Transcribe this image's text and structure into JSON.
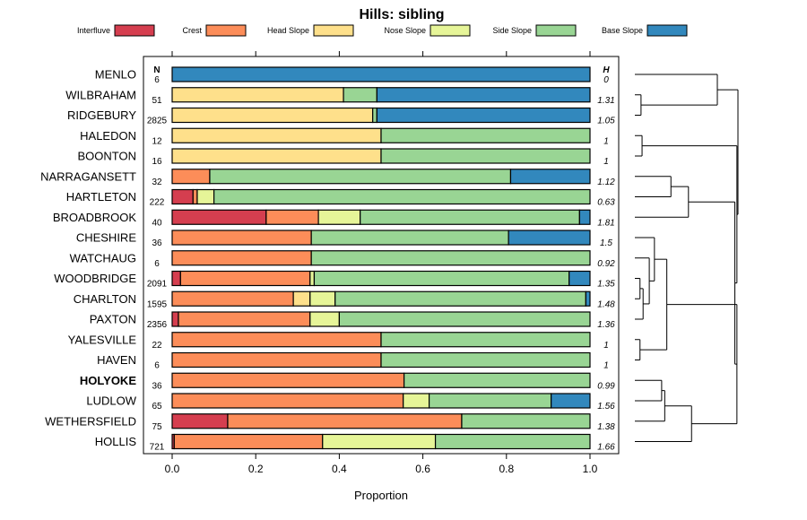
{
  "chart_data": {
    "type": "bar",
    "orientation": "horizontal",
    "stacked": true,
    "title": "Hills: sibling",
    "xlabel": "Proportion",
    "ylabel": "",
    "xlim": [
      0,
      1
    ],
    "x_ticks": [
      "0.0",
      "0.2",
      "0.4",
      "0.6",
      "0.8",
      "1.0"
    ],
    "x_tick_values": [
      0,
      0.2,
      0.4,
      0.6,
      0.8,
      1.0
    ],
    "grid": false,
    "legend_position": "top",
    "n_header": "N",
    "h_header": "H",
    "legend": [
      {
        "name": "Interfluve",
        "color": "#d53e4f"
      },
      {
        "name": "Crest",
        "color": "#fc8d59"
      },
      {
        "name": "Head Slope",
        "color": "#fee08b"
      },
      {
        "name": "Nose Slope",
        "color": "#e6f598"
      },
      {
        "name": "Side Slope",
        "color": "#99d594"
      },
      {
        "name": "Base Slope",
        "color": "#3288bd"
      }
    ],
    "series_names": [
      "Interfluve",
      "Crest",
      "Head Slope",
      "Nose Slope",
      "Side Slope",
      "Base Slope"
    ],
    "categories": [
      "MENLO",
      "WILBRAHAM",
      "RIDGEBURY",
      "HALEDON",
      "BOONTON",
      "NARRAGANSETT",
      "HARTLETON",
      "BROADBROOK",
      "CHESHIRE",
      "WATCHAUG",
      "WOODBRIDGE",
      "CHARLTON",
      "PAXTON",
      "YALESVILLE",
      "HAVEN",
      "HOLYOKE",
      "LUDLOW",
      "WETHERSFIELD",
      "HOLLIS"
    ],
    "bold_category": "HOLYOKE",
    "N": [
      "6",
      "51",
      "2825",
      "12",
      "16",
      "32",
      "222",
      "40",
      "36",
      "6",
      "2091",
      "1595",
      "2356",
      "22",
      "6",
      "36",
      "65",
      "75",
      "721"
    ],
    "H": [
      "0",
      "1.31",
      "1.05",
      "1",
      "1",
      "1.12",
      "0.63",
      "1.81",
      "1.5",
      "0.92",
      "1.35",
      "1.48",
      "1.36",
      "1",
      "1",
      "0.99",
      "1.56",
      "1.38",
      "1.66"
    ],
    "values": [
      [
        0,
        0,
        0,
        0,
        0,
        1.0
      ],
      [
        0,
        0,
        0.41,
        0,
        0.08,
        0.51
      ],
      [
        0,
        0,
        0.48,
        0,
        0.01,
        0.51
      ],
      [
        0,
        0,
        0.5,
        0,
        0.5,
        0
      ],
      [
        0,
        0,
        0.5,
        0,
        0.5,
        0
      ],
      [
        0,
        0.09,
        0,
        0,
        0.72,
        0.19
      ],
      [
        0.05,
        0.01,
        0,
        0.04,
        0.9,
        0
      ],
      [
        0.225,
        0.125,
        0,
        0.1,
        0.525,
        0.025
      ],
      [
        0,
        0.333,
        0,
        0,
        0.472,
        0.195
      ],
      [
        0,
        0.333,
        0,
        0,
        0.667,
        0
      ],
      [
        0.02,
        0.31,
        0,
        0.01,
        0.61,
        0.05
      ],
      [
        0,
        0.29,
        0.04,
        0.06,
        0.6,
        0.01
      ],
      [
        0.015,
        0.315,
        0,
        0.07,
        0.6,
        0
      ],
      [
        0,
        0.5,
        0,
        0,
        0.5,
        0
      ],
      [
        0,
        0.5,
        0,
        0,
        0.5,
        0
      ],
      [
        0,
        0.555,
        0,
        0,
        0.445,
        0
      ],
      [
        0,
        0.553,
        0,
        0.062,
        0.292,
        0.093
      ],
      [
        0.133,
        0.56,
        0,
        0,
        0.307,
        0
      ],
      [
        0.005,
        0.355,
        0,
        0.27,
        0.37,
        0
      ]
    ],
    "dendrogram": {
      "type": "hierarchical-clustering",
      "heights": "relative, 0-1 scale",
      "merges": [
        {
          "a": "WILBRAHAM",
          "b": "RIDGEBURY",
          "height": 0.06
        },
        {
          "a": "HALEDON",
          "b": "BOONTON",
          "height": 0.07
        },
        {
          "a": "YALESVILLE",
          "b": "HAVEN",
          "height": 0.05
        },
        {
          "a": "WOODBRIDGE",
          "b": "CHARLTON",
          "height": 0.05
        },
        {
          "a": "WOODBRIDGE+CHARLTON",
          "b": "PAXTON",
          "height": 0.08
        },
        {
          "a": "WOODBRIDGE+CHARLTON+PAXTON",
          "b": "WATCHAUG",
          "height": 0.14
        },
        {
          "a": "CHESHIRE",
          "b": "WOODBRIDGE+CHARLTON+PAXTON+WATCHAUG",
          "height": 0.19
        },
        {
          "a": "CHESHIRE+...",
          "b": "YALESVILLE+HAVEN",
          "height": 0.31
        },
        {
          "a": "HOLYOKE",
          "b": "LUDLOW",
          "height": 0.26
        },
        {
          "a": "HOLYOKE+LUDLOW",
          "b": "WETHERSFIELD",
          "height": 0.29
        },
        {
          "a": "HOLYOKE+LUDLOW+WETHERSFIELD",
          "b": "HOLLIS",
          "height": 0.55
        },
        {
          "a": "CHESHIRE+...+YALESVILLE+HAVEN",
          "b": "HOLYOKE+...+HOLLIS",
          "height": 0.99
        },
        {
          "a": "NARRAGANSETT",
          "b": "HARTLETON",
          "height": 0.35
        },
        {
          "a": "NARRAGANSETT+HARTLETON",
          "b": "BROADBROOK",
          "height": 0.52
        },
        {
          "a": "NARRAGANSETT+HARTLETON+BROADBROOK",
          "b": "CHESHIRE+...+HOLLIS",
          "height": 0.97
        },
        {
          "a": "HALEDON+BOONTON",
          "b": "NARRAGANSETT+...+HOLLIS",
          "height": 0.99
        },
        {
          "a": "MENLO",
          "b": "WILBRAHAM+RIDGEBURY",
          "height": 0.8
        },
        {
          "a": "MENLO+WILBRAHAM+RIDGEBURY",
          "b": "HALEDON+...+HOLLIS",
          "height": 1.0
        }
      ]
    }
  }
}
